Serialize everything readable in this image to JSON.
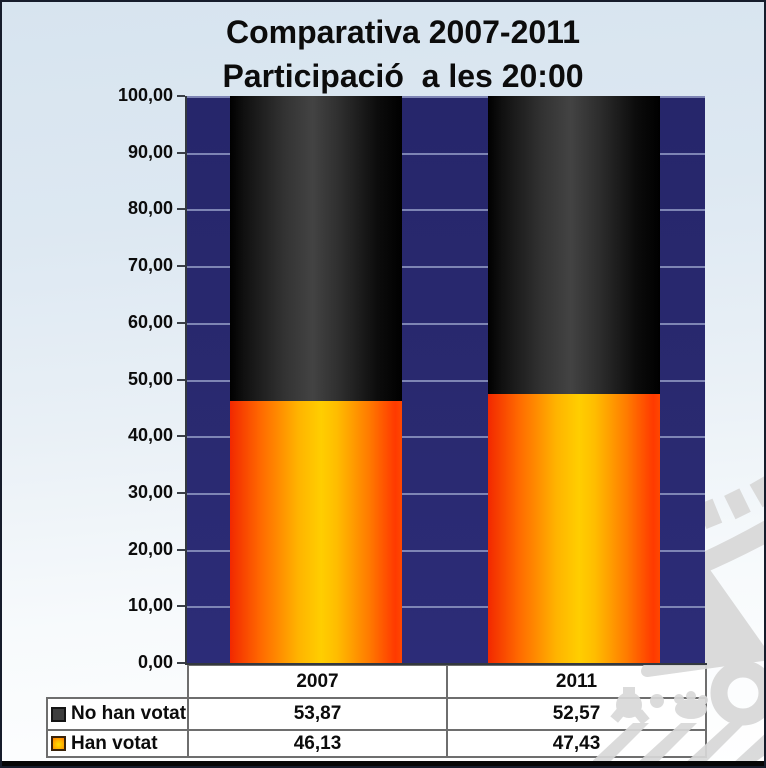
{
  "title": {
    "line1": "Comparativa 2007-2011",
    "line2": "Participació  a les 20:00"
  },
  "y_axis": {
    "labels": [
      "100,00",
      "90,00",
      "80,00",
      "70,00",
      "60,00",
      "50,00",
      "40,00",
      "30,00",
      "20,00",
      "10,00",
      "0,00"
    ]
  },
  "chart_data": {
    "type": "bar",
    "stacked": true,
    "title": "Comparativa 2007-2011 — Participació a les 20:00",
    "categories": [
      "2007",
      "2011"
    ],
    "series": [
      {
        "name": "No han votat",
        "values": [
          53.87,
          52.57
        ],
        "color": "#2f2f2f"
      },
      {
        "name": "Han votat",
        "values": [
          46.13,
          47.43
        ],
        "color": "#ffb400"
      }
    ],
    "ylim": [
      0,
      100
    ],
    "ytick_step": 10,
    "grid": true,
    "plot_bg": "#29296f",
    "gridline_color": "#8d95c1",
    "legend_position": "bottom-table"
  },
  "table": {
    "col_headers": [
      "2007",
      "2011"
    ],
    "rows": [
      {
        "label": "No han votat",
        "swatch": "dark",
        "values": [
          "53,87",
          "52,57"
        ]
      },
      {
        "label": "Han votat",
        "swatch": "orange",
        "values": [
          "46,13",
          "47,43"
        ]
      }
    ]
  },
  "colors": {
    "background_top": "#d7e4ef",
    "background_bottom": "#ffffff",
    "bar_dark_mid": "#434343",
    "bar_orange_mid": "#ffce00",
    "bar_orange_edge": "#f22800",
    "watermark_gray": "#d8d8d8",
    "frame": "#161c2b"
  }
}
